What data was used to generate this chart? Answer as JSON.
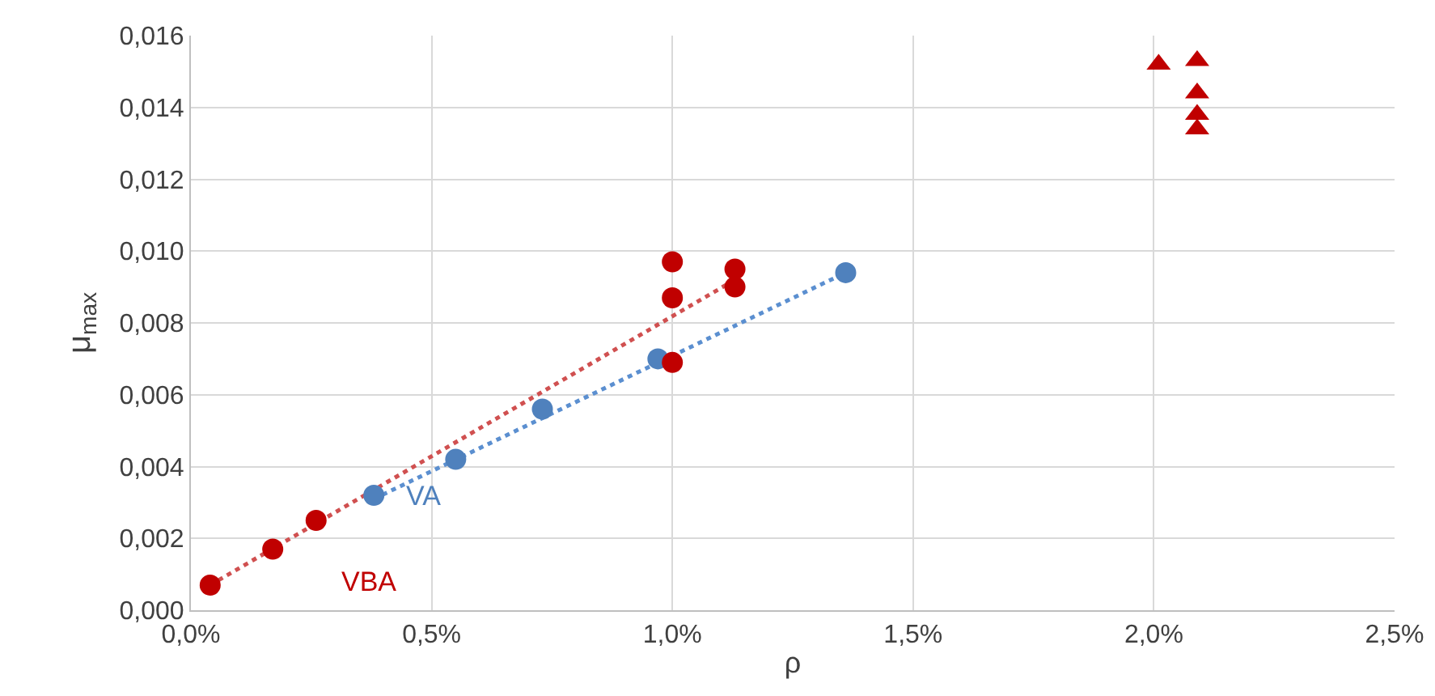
{
  "chart_data": {
    "type": "scatter",
    "xlabel": "ρ",
    "ylabel": "μ$_{max}$",
    "xlim": [
      0,
      2.5
    ],
    "xticks": [
      {
        "value": 0,
        "label": "0,0%"
      },
      {
        "value": 0.5,
        "label": "0,5%"
      },
      {
        "value": 1,
        "label": "1,0%"
      },
      {
        "value": 1.5,
        "label": "1,5%"
      },
      {
        "value": 2,
        "label": "2,0%"
      },
      {
        "value": 2.5,
        "label": "2,5%"
      }
    ],
    "ylim": [
      0,
      0.016
    ],
    "yticks": [
      {
        "value": 0,
        "label": "0,000"
      },
      {
        "value": 0.002,
        "label": "0,002"
      },
      {
        "value": 0.004,
        "label": "0,004"
      },
      {
        "value": 0.006,
        "label": "0,006"
      },
      {
        "value": 0.008,
        "label": "0,008"
      },
      {
        "value": 0.01,
        "label": "0,010"
      },
      {
        "value": 0.012,
        "label": "0,012"
      },
      {
        "value": 0.014,
        "label": "0,014"
      },
      {
        "value": 0.016,
        "label": "0,016"
      }
    ],
    "grid": true,
    "legend": false,
    "series": [
      {
        "name": "VA",
        "marker": "circle",
        "color": "#4f81bd",
        "x": [
          0.38,
          0.55,
          0.73,
          0.97,
          1.36
        ],
        "values": [
          0.0032,
          0.0042,
          0.0056,
          0.007,
          0.0094
        ]
      },
      {
        "name": "VBA",
        "marker": "circle",
        "color": "#c00000",
        "x": [
          0.04,
          0.17,
          0.26,
          1.0,
          1.0,
          1.0,
          1.13,
          1.13
        ],
        "values": [
          0.0007,
          0.0017,
          0.0025,
          0.0097,
          0.0087,
          0.0069,
          0.0095,
          0.009
        ]
      },
      {
        "marker": "triangle",
        "color": "#c00000",
        "x": [
          2.01,
          2.09,
          2.09,
          2.09,
          2.09
        ],
        "values": [
          0.0152,
          0.0153,
          0.0144,
          0.0138,
          0.0134
        ]
      },
      {
        "type": "line",
        "marker": "none",
        "line_style": "dotted",
        "color": "#5b8fd0",
        "x": [
          0.38,
          1.36
        ],
        "values": [
          0.0031,
          0.0094
        ]
      },
      {
        "type": "line",
        "marker": "none",
        "line_style": "dotted",
        "color": "#d05050",
        "x": [
          0.04,
          1.13
        ],
        "values": [
          0.0007,
          0.0092
        ]
      }
    ]
  }
}
